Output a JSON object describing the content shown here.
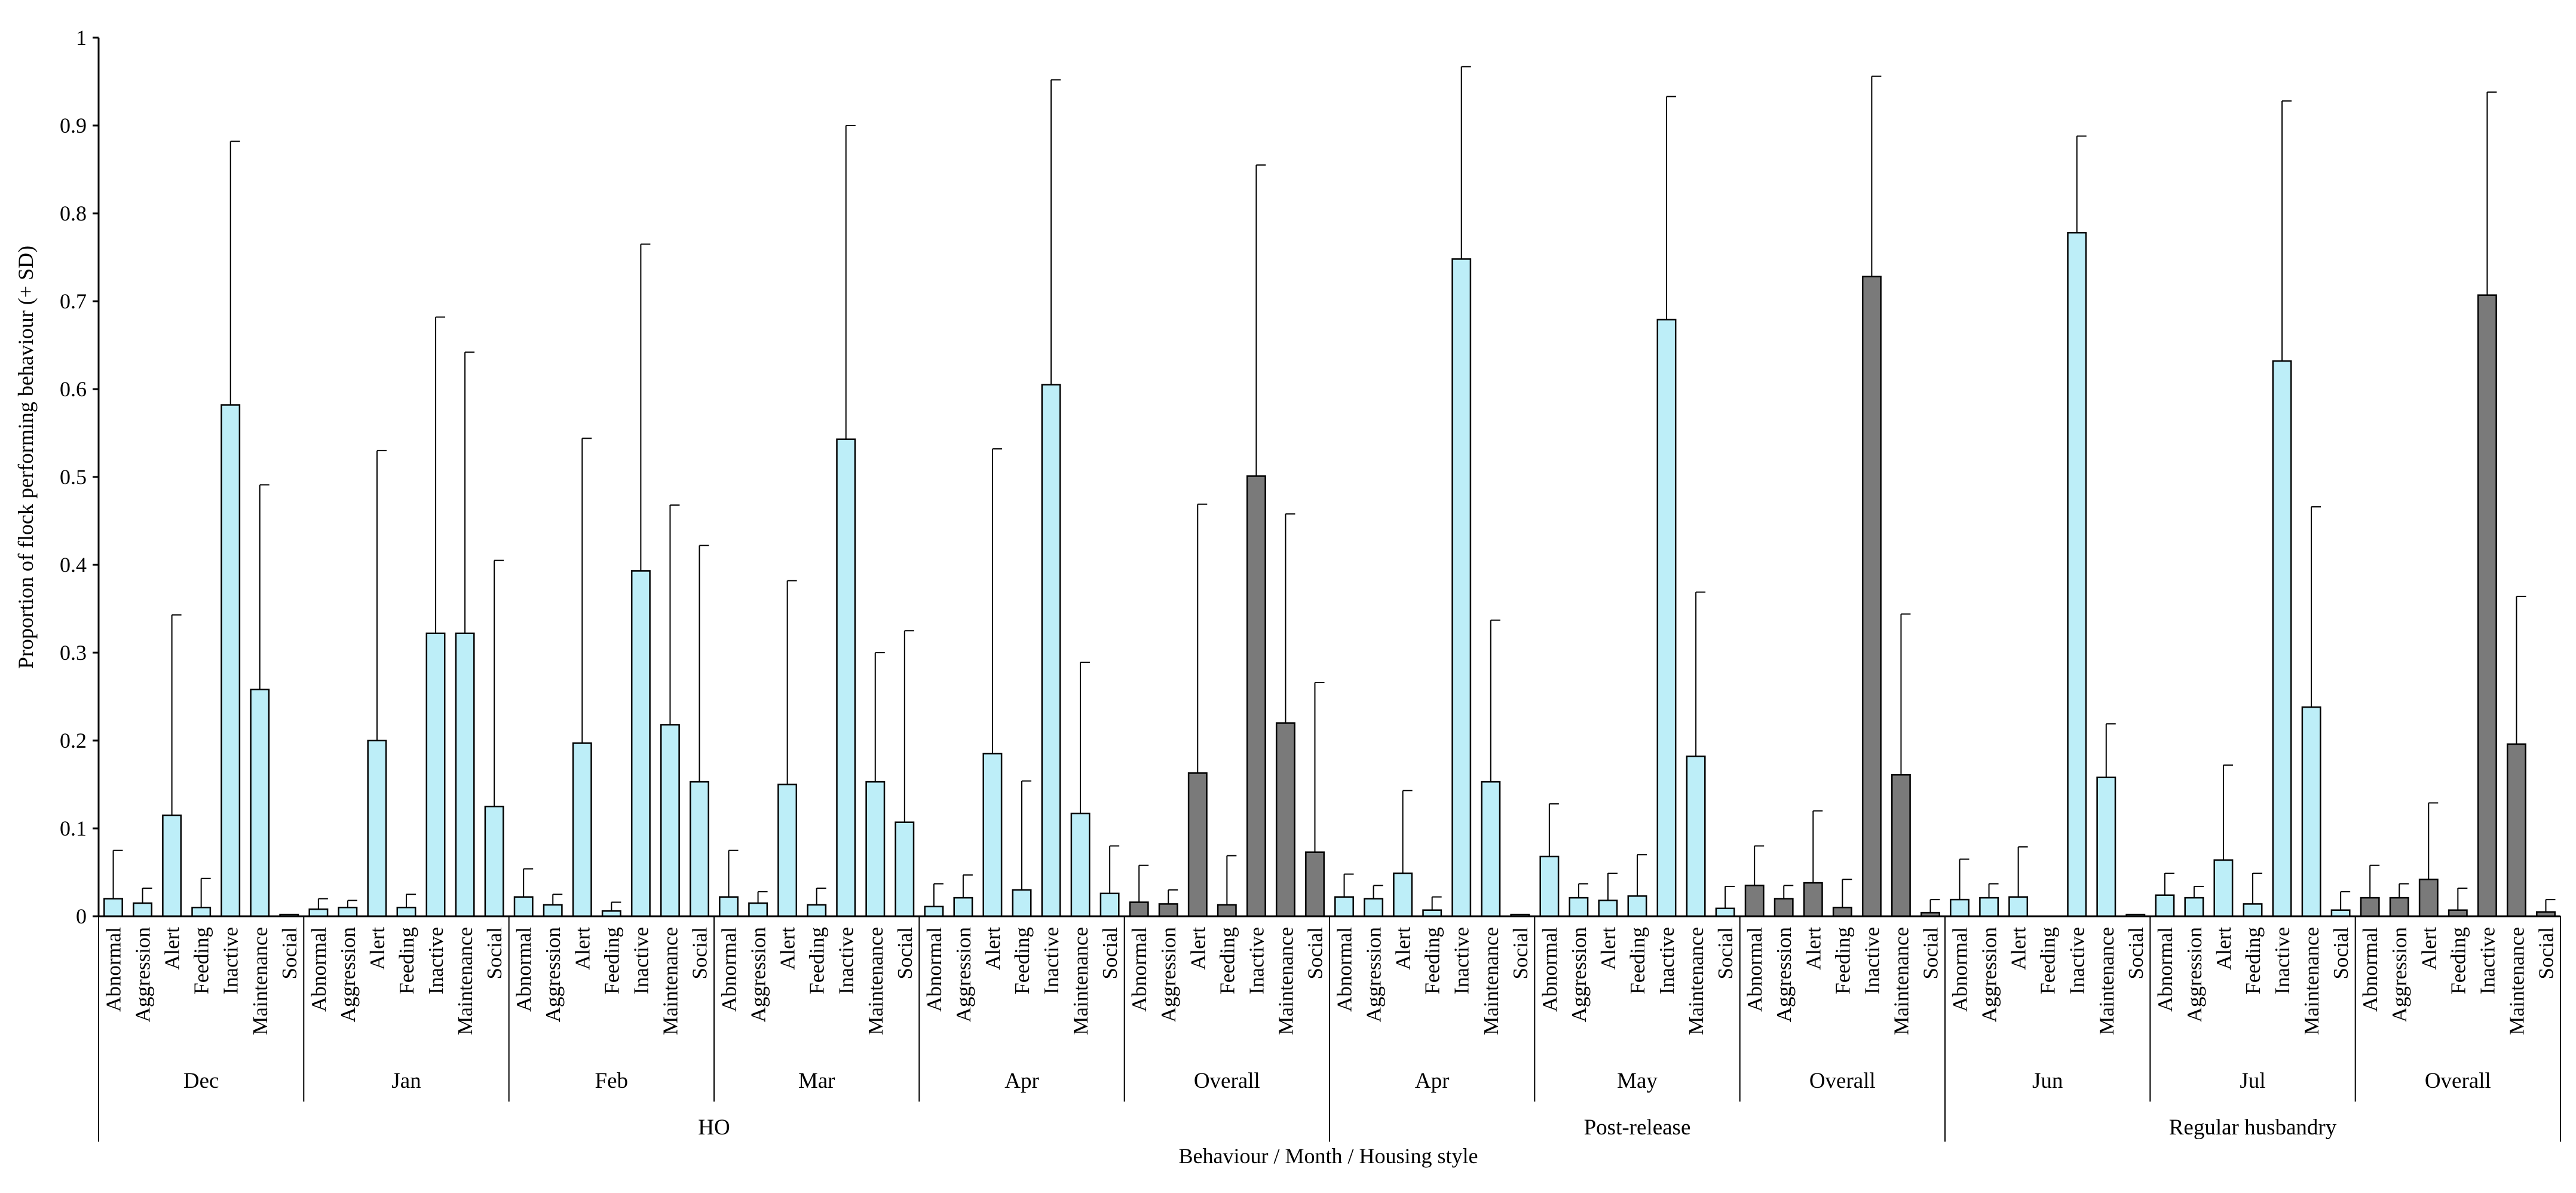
{
  "chart_data": {
    "type": "bar",
    "title": "",
    "ylabel": "Proportion of flock performing behaviour (+ SD)",
    "xlabel": "Behaviour / Month / Housing style",
    "ylim": [
      0,
      1
    ],
    "yticks": [
      0,
      0.1,
      0.2,
      0.3,
      0.4,
      0.5,
      0.6,
      0.7,
      0.8,
      0.9,
      1
    ],
    "ytick_labels": [
      "0",
      "0.1",
      "0.2",
      "0.3",
      "0.4",
      "0.5",
      "0.6",
      "0.7",
      "0.8",
      "0.9",
      "1"
    ],
    "behaviours": [
      "Abnormal",
      "Aggression",
      "Alert",
      "Feeding",
      "Inactive",
      "Maintenance",
      "Social"
    ],
    "colors": {
      "monthly": "#bdeef8",
      "overall": "#7a7a7a",
      "axis": "#000000"
    },
    "housing": [
      {
        "label": "HO",
        "groups": [
          {
            "label": "Dec",
            "overall": false,
            "values": [
              0.02,
              0.015,
              0.115,
              0.01,
              0.582,
              0.258,
              0.002
            ],
            "sd": [
              0.055,
              0.017,
              0.228,
              0.033,
              0.3,
              0.233,
              0.0
            ]
          },
          {
            "label": "Jan",
            "overall": false,
            "values": [
              0.008,
              0.01,
              0.2,
              0.01,
              0.322,
              0.322,
              0.125
            ],
            "sd": [
              0.012,
              0.008,
              0.33,
              0.015,
              0.36,
              0.32,
              0.28
            ]
          },
          {
            "label": "Feb",
            "overall": false,
            "values": [
              0.022,
              0.013,
              0.197,
              0.006,
              0.393,
              0.218,
              0.153
            ],
            "sd": [
              0.032,
              0.012,
              0.347,
              0.01,
              0.372,
              0.25,
              0.269
            ]
          },
          {
            "label": "Mar",
            "overall": false,
            "values": [
              0.022,
              0.015,
              0.15,
              0.013,
              0.543,
              0.153,
              0.107
            ],
            "sd": [
              0.053,
              0.013,
              0.232,
              0.019,
              0.357,
              0.147,
              0.218
            ]
          },
          {
            "label": "Apr",
            "overall": false,
            "values": [
              0.011,
              0.021,
              0.185,
              0.03,
              0.605,
              0.117,
              0.026
            ],
            "sd": [
              0.026,
              0.026,
              0.347,
              0.124,
              0.347,
              0.172,
              0.054
            ]
          },
          {
            "label": "Overall",
            "overall": true,
            "values": [
              0.016,
              0.014,
              0.163,
              0.013,
              0.501,
              0.22,
              0.073
            ],
            "sd": [
              0.042,
              0.016,
              0.306,
              0.056,
              0.354,
              0.238,
              0.193
            ]
          }
        ]
      },
      {
        "label": "Post-release",
        "groups": [
          {
            "label": "Apr",
            "overall": false,
            "values": [
              0.022,
              0.02,
              0.049,
              0.007,
              0.748,
              0.153,
              0.002
            ],
            "sd": [
              0.026,
              0.015,
              0.094,
              0.015,
              0.219,
              0.184,
              0.0
            ]
          },
          {
            "label": "May",
            "overall": false,
            "values": [
              0.068,
              0.021,
              0.018,
              0.023,
              0.679,
              0.182,
              0.009
            ],
            "sd": [
              0.06,
              0.016,
              0.031,
              0.047,
              0.254,
              0.187,
              0.025
            ]
          },
          {
            "label": "Overall",
            "overall": true,
            "values": [
              0.035,
              0.02,
              0.038,
              0.01,
              0.728,
              0.161,
              0.004
            ],
            "sd": [
              0.045,
              0.015,
              0.082,
              0.032,
              0.228,
              0.183,
              0.015
            ]
          }
        ]
      },
      {
        "label": "Regular husbandry",
        "groups": [
          {
            "label": "Jun",
            "overall": false,
            "values": [
              0.019,
              0.021,
              0.022,
              0.0,
              0.778,
              0.158,
              0.002
            ],
            "sd": [
              0.046,
              0.016,
              0.057,
              0.0,
              0.11,
              0.061,
              0.0
            ]
          },
          {
            "label": "Jul",
            "overall": false,
            "values": [
              0.024,
              0.021,
              0.064,
              0.014,
              0.632,
              0.238,
              0.007
            ],
            "sd": [
              0.025,
              0.013,
              0.108,
              0.035,
              0.296,
              0.228,
              0.021
            ]
          },
          {
            "label": "Overall",
            "overall": true,
            "values": [
              0.021,
              0.021,
              0.042,
              0.007,
              0.707,
              0.196,
              0.005
            ],
            "sd": [
              0.037,
              0.016,
              0.087,
              0.025,
              0.231,
              0.168,
              0.014
            ]
          }
        ]
      }
    ]
  }
}
